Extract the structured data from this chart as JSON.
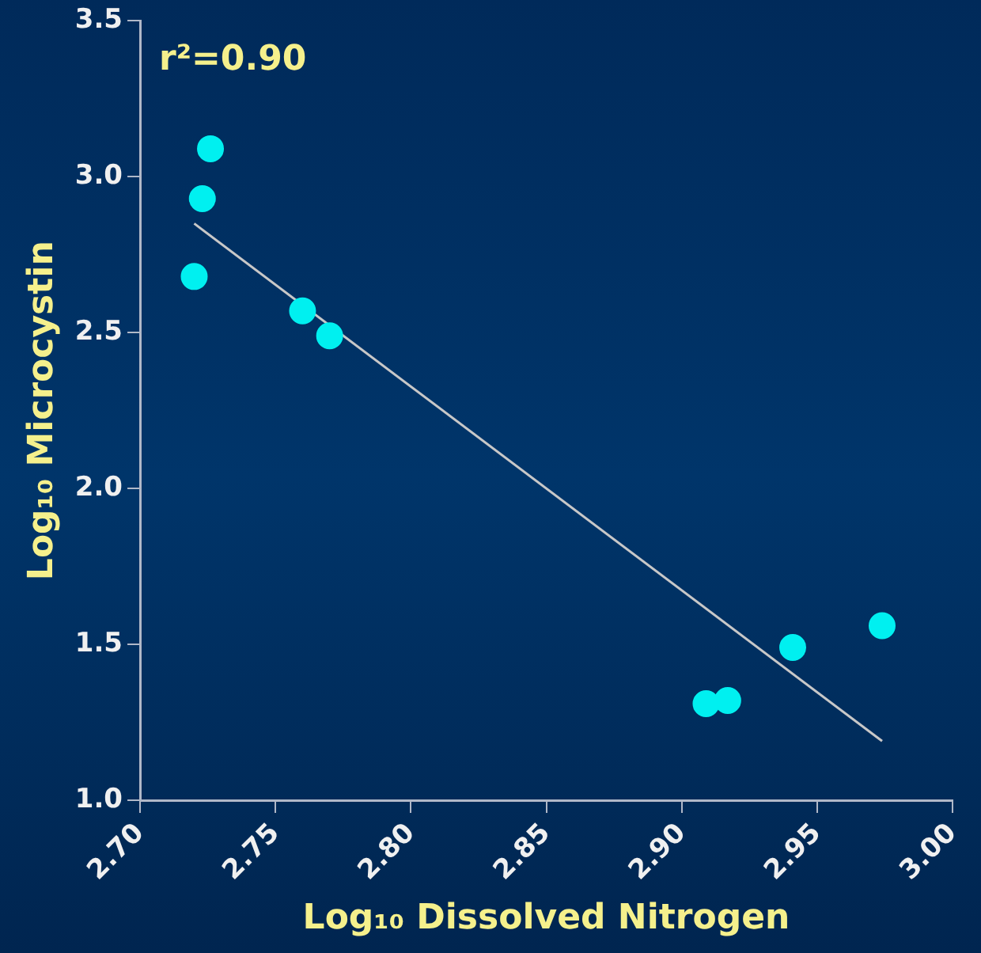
{
  "chart_data": {
    "type": "scatter",
    "xlabel": "Log₁₀ Dissolved Nitrogen",
    "ylabel": "Log₁₀ Microcystin",
    "annotations": [
      "r²=0.90"
    ],
    "xlim": [
      2.7,
      3.0
    ],
    "xticks": [
      {
        "value": 2.7,
        "label": "2.70"
      },
      {
        "value": 2.75,
        "label": "2.75"
      },
      {
        "value": 2.8,
        "label": "2.80"
      },
      {
        "value": 2.85,
        "label": "2.85"
      },
      {
        "value": 2.9,
        "label": "2.90"
      },
      {
        "value": 2.95,
        "label": "2.95"
      },
      {
        "value": 3.0,
        "label": "3.00"
      }
    ],
    "ylim": [
      1.0,
      3.5
    ],
    "yticks": [
      {
        "value": 1.0,
        "label": "1.0"
      },
      {
        "value": 1.5,
        "label": "1.5"
      },
      {
        "value": 2.0,
        "label": "2.0"
      },
      {
        "value": 2.5,
        "label": "2.5"
      },
      {
        "value": 3.0,
        "label": "3.0"
      },
      {
        "value": 3.5,
        "label": "3.5"
      }
    ],
    "grid": false,
    "legend": false,
    "series": [
      {
        "marker": "circle",
        "color": "#00f0f0",
        "x": [
          2.72,
          2.723,
          2.726,
          2.76,
          2.77,
          2.909,
          2.917,
          2.941,
          2.974
        ],
        "values": [
          2.68,
          2.93,
          3.09,
          2.57,
          2.49,
          1.31,
          1.32,
          1.49,
          1.56
        ]
      },
      {
        "type": "line",
        "marker": "none",
        "color": "#c8c8c8",
        "line_style": "solid",
        "x": [
          2.72,
          2.974
        ],
        "values": [
          2.85,
          1.19
        ]
      }
    ]
  }
}
